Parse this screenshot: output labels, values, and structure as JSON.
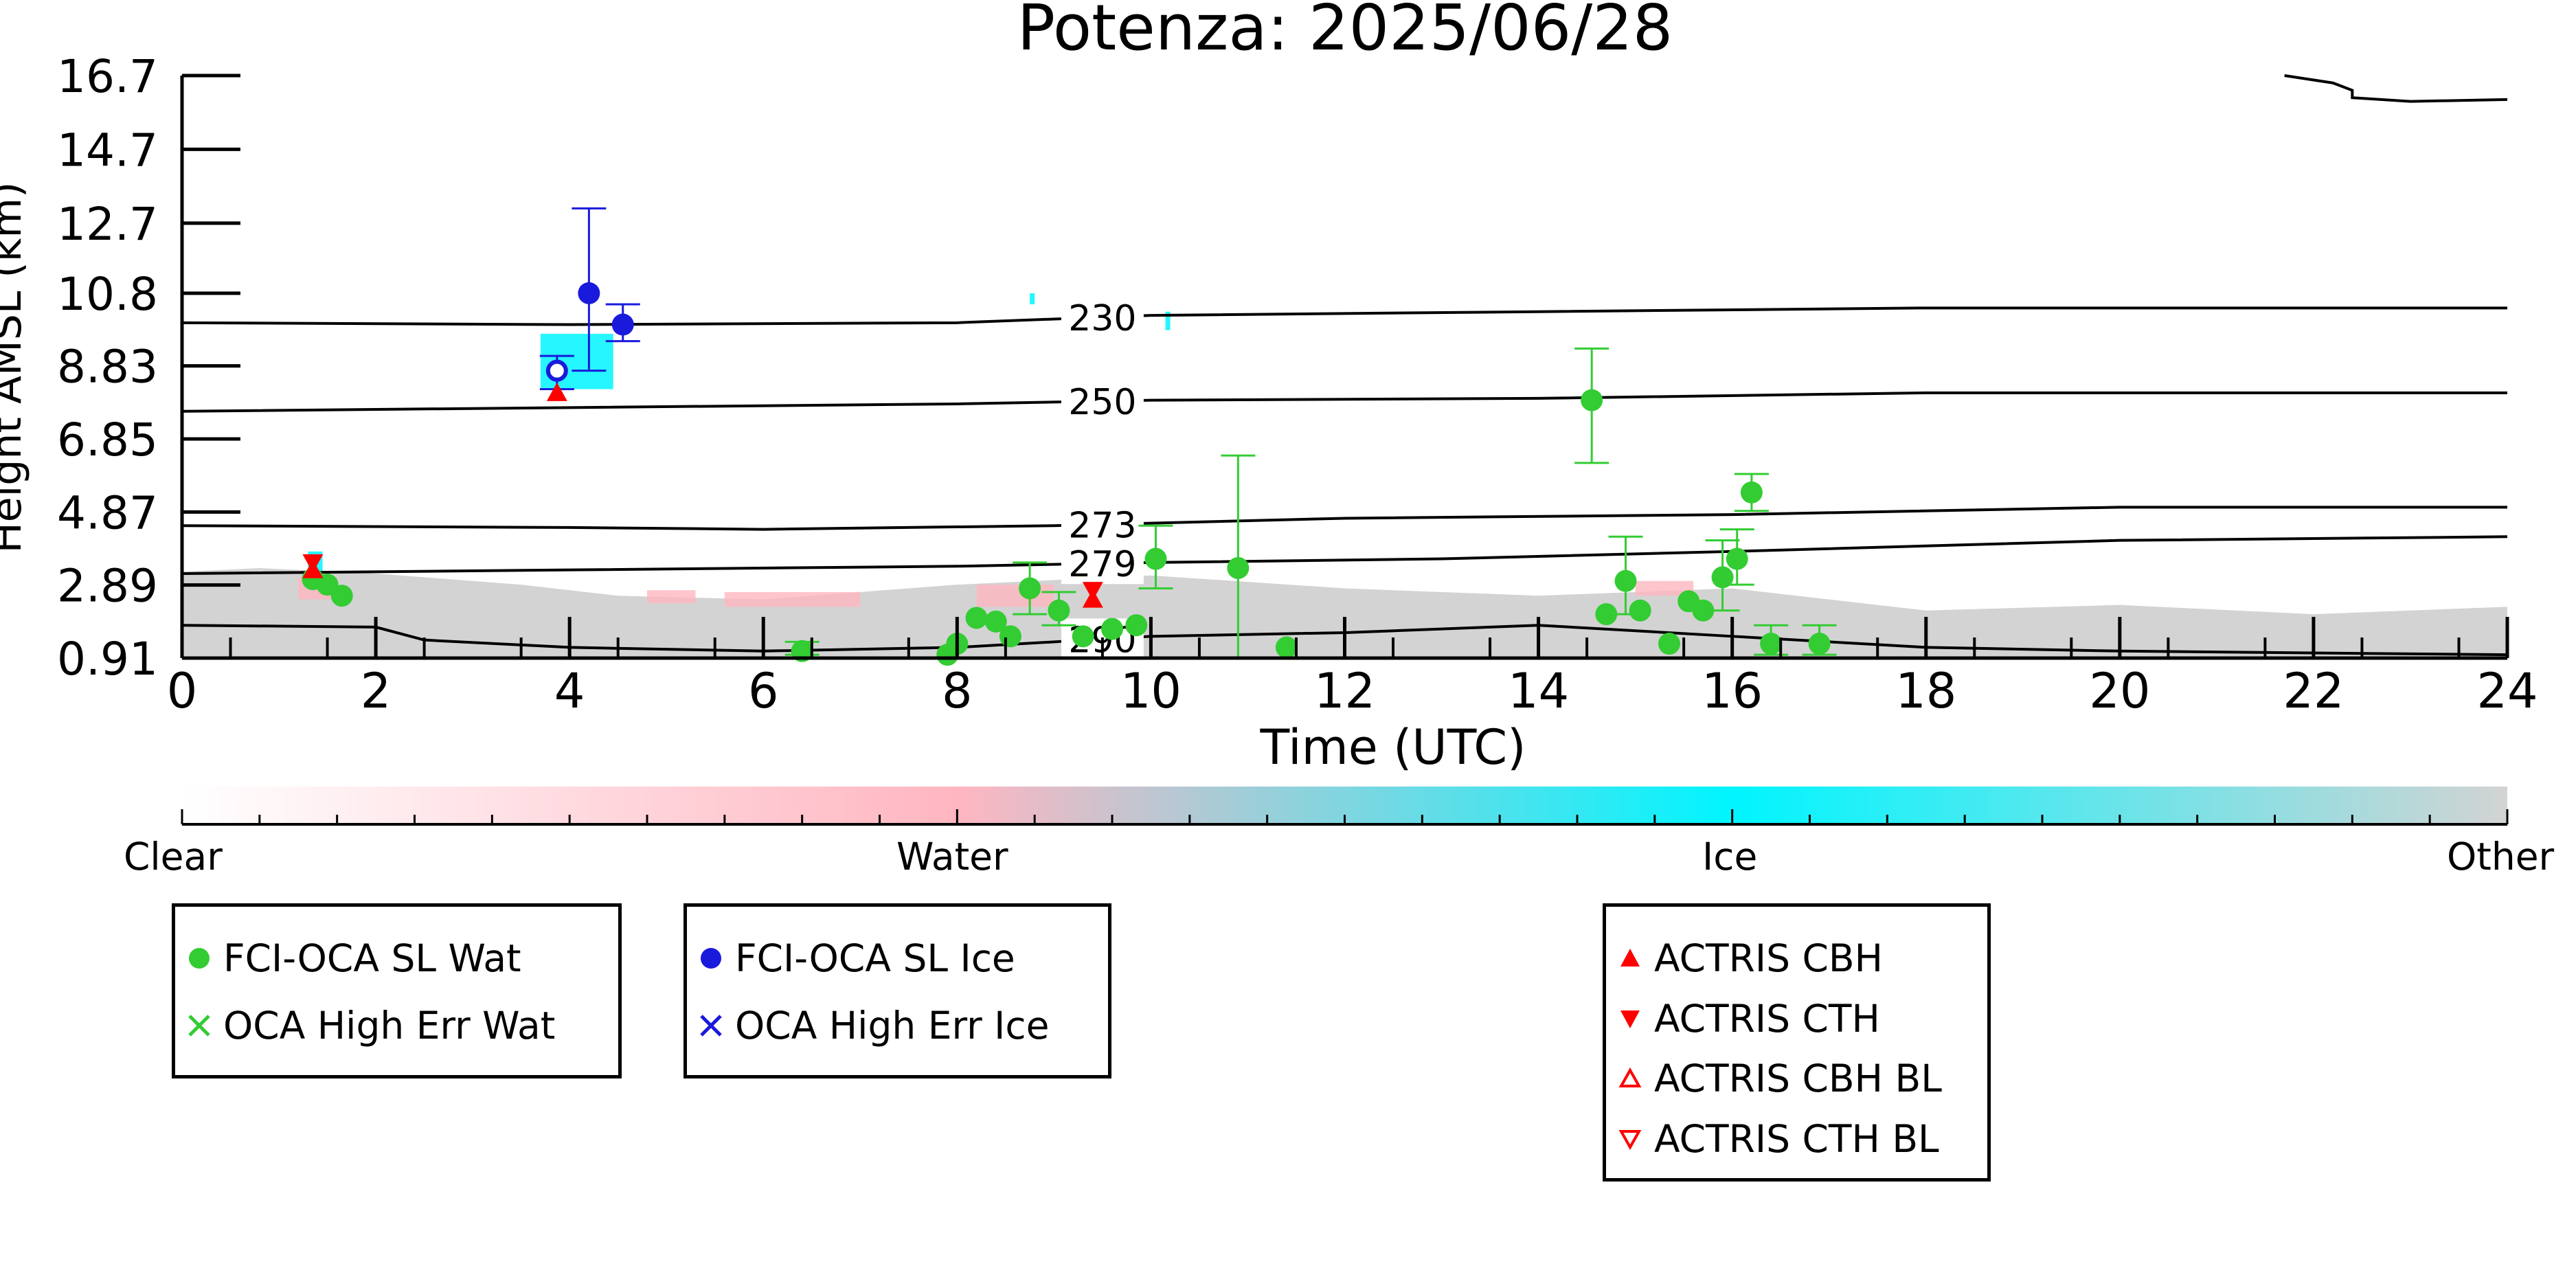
{
  "chart_data": {
    "type": "scatter",
    "title": "Potenza: 2025/06/28",
    "xlabel": "Time (UTC)",
    "ylabel": "Height AMSL (km)",
    "xlim": [
      0,
      24
    ],
    "ylim": [
      0.91,
      16.7
    ],
    "x_ticks": [
      "0",
      "2",
      "4",
      "6",
      "8",
      "10",
      "12",
      "14",
      "16",
      "18",
      "20",
      "22",
      "24"
    ],
    "y_ticks": [
      "16.7",
      "14.7",
      "12.7",
      "10.8",
      "8.83",
      "6.85",
      "4.87",
      "2.89",
      "0.91"
    ],
    "grid": false,
    "contours": [
      {
        "label": "230",
        "label_x": 9.5,
        "points": [
          [
            0,
            10.0
          ],
          [
            4,
            9.95
          ],
          [
            8,
            10.0
          ],
          [
            10,
            10.2
          ],
          [
            14,
            10.3
          ],
          [
            18,
            10.4
          ],
          [
            24,
            10.4
          ]
        ]
      },
      {
        "label": "250",
        "label_x": 9.5,
        "points": [
          [
            0,
            7.6
          ],
          [
            4,
            7.7
          ],
          [
            8,
            7.8
          ],
          [
            10,
            7.9
          ],
          [
            14,
            7.95
          ],
          [
            18,
            8.1
          ],
          [
            24,
            8.1
          ]
        ]
      },
      {
        "label": "273",
        "label_x": 9.5,
        "points": [
          [
            0,
            4.5
          ],
          [
            4,
            4.45
          ],
          [
            6,
            4.4
          ],
          [
            9,
            4.5
          ],
          [
            12,
            4.7
          ],
          [
            16,
            4.8
          ],
          [
            20,
            5.0
          ],
          [
            24,
            5.0
          ]
        ]
      },
      {
        "label": "279",
        "label_x": 9.5,
        "points": [
          [
            0,
            3.2
          ],
          [
            4,
            3.3
          ],
          [
            8,
            3.4
          ],
          [
            10,
            3.5
          ],
          [
            13,
            3.6
          ],
          [
            16,
            3.8
          ],
          [
            20,
            4.1
          ],
          [
            24,
            4.2
          ]
        ]
      },
      {
        "label": "290",
        "label_x": 9.5,
        "points": [
          [
            0,
            1.8
          ],
          [
            2,
            1.75
          ],
          [
            2.5,
            1.4
          ],
          [
            4,
            1.2
          ],
          [
            6,
            1.1
          ],
          [
            8,
            1.2
          ],
          [
            10,
            1.5
          ],
          [
            12,
            1.6
          ],
          [
            14,
            1.8
          ],
          [
            16,
            1.5
          ],
          [
            18,
            1.2
          ],
          [
            20,
            1.1
          ],
          [
            24,
            1.0
          ]
        ]
      },
      {
        "label": "",
        "label_x": null,
        "points": [
          [
            21.7,
            16.7
          ],
          [
            22.2,
            16.5
          ],
          [
            22.4,
            16.3
          ],
          [
            22.4,
            16.1
          ],
          [
            23.0,
            16.0
          ],
          [
            24,
            16.05
          ]
        ]
      }
    ],
    "series": [
      {
        "name": "FCI-OCA SL Wat",
        "marker": "filled-circle",
        "color": "#33cc33",
        "points": [
          {
            "x": 1.35,
            "y": 3.05
          },
          {
            "x": 1.5,
            "y": 2.9
          },
          {
            "x": 1.65,
            "y": 2.6
          },
          {
            "x": 6.4,
            "y": 1.1,
            "err": [
              1.0,
              1.35
            ]
          },
          {
            "x": 7.9,
            "y": 1.0
          },
          {
            "x": 8.0,
            "y": 1.3
          },
          {
            "x": 8.2,
            "y": 2.0
          },
          {
            "x": 8.4,
            "y": 1.9
          },
          {
            "x": 8.55,
            "y": 1.5
          },
          {
            "x": 8.75,
            "y": 2.8,
            "err": [
              2.1,
              3.5
            ]
          },
          {
            "x": 9.05,
            "y": 2.2,
            "err": [
              1.8,
              2.7
            ]
          },
          {
            "x": 9.3,
            "y": 1.5
          },
          {
            "x": 9.6,
            "y": 1.7
          },
          {
            "x": 9.85,
            "y": 1.8
          },
          {
            "x": 10.05,
            "y": 3.6,
            "err": [
              2.8,
              4.5
            ]
          },
          {
            "x": 10.9,
            "y": 3.35,
            "err": [
              0.91,
              6.4
            ]
          },
          {
            "x": 11.4,
            "y": 1.2
          },
          {
            "x": 14.55,
            "y": 7.9,
            "err": [
              6.2,
              9.3
            ]
          },
          {
            "x": 14.7,
            "y": 2.1
          },
          {
            "x": 14.9,
            "y": 3.0,
            "err": [
              2.1,
              4.2
            ]
          },
          {
            "x": 15.05,
            "y": 2.2
          },
          {
            "x": 15.35,
            "y": 1.3
          },
          {
            "x": 15.55,
            "y": 2.45
          },
          {
            "x": 15.7,
            "y": 2.2
          },
          {
            "x": 15.9,
            "y": 3.1,
            "err": [
              2.2,
              4.1
            ]
          },
          {
            "x": 16.05,
            "y": 3.6,
            "err": [
              2.9,
              4.4
            ]
          },
          {
            "x": 16.2,
            "y": 5.4,
            "err": [
              4.9,
              5.9
            ]
          },
          {
            "x": 16.4,
            "y": 1.3,
            "err": [
              1.0,
              1.8
            ]
          },
          {
            "x": 16.9,
            "y": 1.3,
            "err": [
              1.0,
              1.8
            ]
          }
        ]
      },
      {
        "name": "FCI-OCA SL Ice",
        "marker": "filled-circle",
        "color": "#1a1adc",
        "points": [
          {
            "x": 4.2,
            "y": 10.8,
            "err": [
              8.7,
              13.1
            ]
          },
          {
            "x": 4.55,
            "y": 9.95,
            "err": [
              9.5,
              10.5
            ]
          },
          {
            "x": 3.87,
            "y": 8.7,
            "hollow": true,
            "err": [
              8.2,
              9.1
            ]
          }
        ]
      },
      {
        "name": "ACTRIS CBH",
        "marker": "triangle-up",
        "color": "#ff0000",
        "points": [
          {
            "x": 1.35,
            "y": 3.3
          },
          {
            "x": 3.87,
            "y": 8.1
          },
          {
            "x": 9.4,
            "y": 2.5
          }
        ]
      },
      {
        "name": "ACTRIS CTH",
        "marker": "triangle-down",
        "color": "#ff0000",
        "points": [
          {
            "x": 1.35,
            "y": 3.5
          },
          {
            "x": 9.4,
            "y": 2.75
          }
        ]
      }
    ],
    "colorbar": {
      "labels": [
        "Clear",
        "Water",
        "Ice",
        "Other"
      ],
      "colors": [
        "#ffffff",
        "#ffb6c1",
        "#00f5ff",
        "#d3d3d3"
      ]
    },
    "legend_groups": [
      {
        "entries": [
          {
            "label": "FCI-OCA SL Wat",
            "marker": "filled-circle",
            "color": "#33cc33"
          },
          {
            "label": "OCA High Err Wat",
            "marker": "x",
            "color": "#33cc33"
          }
        ]
      },
      {
        "entries": [
          {
            "label": "FCI-OCA SL Ice",
            "marker": "filled-circle",
            "color": "#1a1adc"
          },
          {
            "label": "OCA High Err Ice",
            "marker": "x",
            "color": "#1a1adc"
          }
        ]
      },
      {
        "entries": [
          {
            "label": "ACTRIS CBH",
            "marker": "triangle-up",
            "color": "#ff0000"
          },
          {
            "label": "ACTRIS CTH",
            "marker": "triangle-down",
            "color": "#ff0000"
          },
          {
            "label": "ACTRIS CBH BL",
            "marker": "triangle-up-hollow",
            "color": "#ff0000"
          },
          {
            "label": "ACTRIS CTH BL",
            "marker": "triangle-down-hollow",
            "color": "#ff0000"
          }
        ]
      }
    ]
  }
}
